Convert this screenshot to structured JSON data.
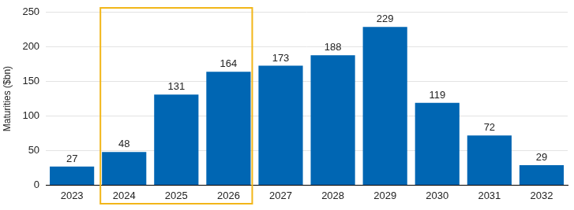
{
  "chart_data": {
    "type": "bar",
    "y_label": "Maturities ($bn)",
    "categories": [
      "2023",
      "2024",
      "2025",
      "2026",
      "2027",
      "2028",
      "2029",
      "2030",
      "2031",
      "2032"
    ],
    "values": [
      27,
      48,
      131,
      164,
      173,
      188,
      229,
      119,
      72,
      29
    ],
    "color": "#0066b3",
    "ylim": [
      0,
      250
    ],
    "yticks": [
      0,
      50,
      100,
      150,
      200,
      250
    ],
    "grid": true,
    "data_labels": true
  }
}
